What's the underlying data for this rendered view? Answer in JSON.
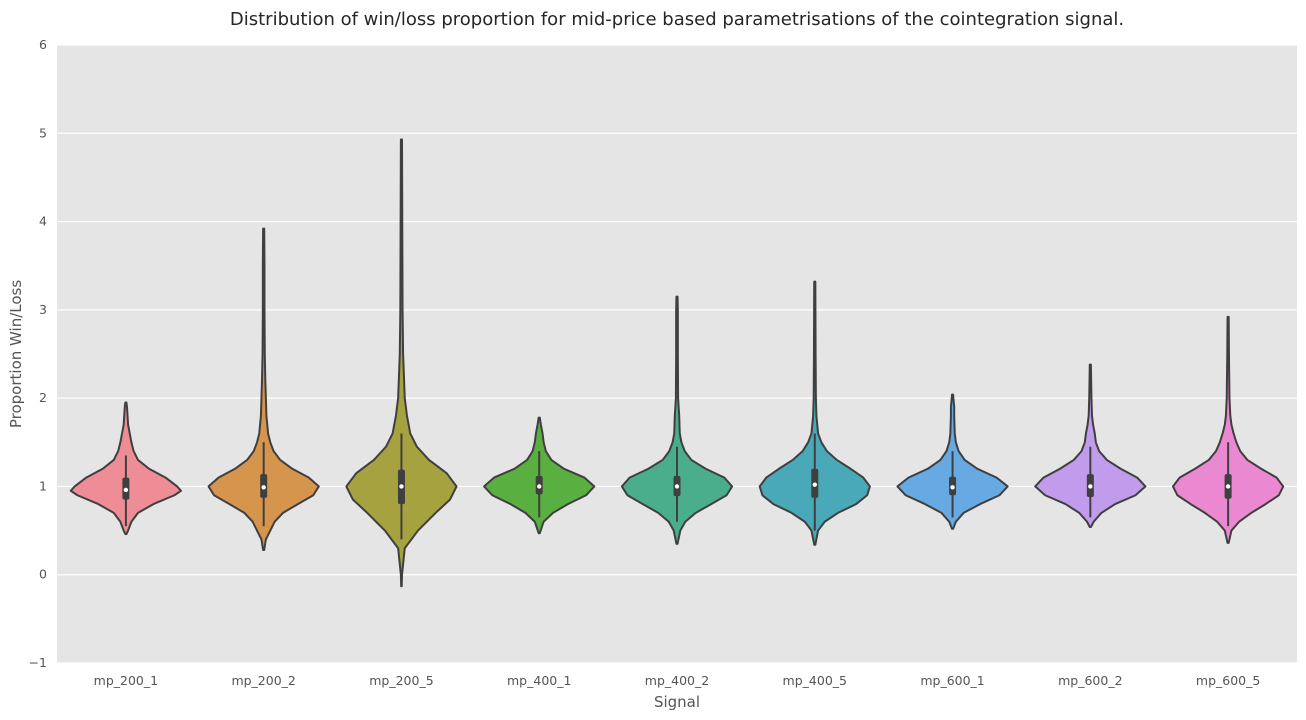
{
  "chart_data": {
    "type": "violin",
    "title": "Distribution of win/loss proportion for mid-price based parametrisations of the cointegration signal.",
    "xlabel": "Signal",
    "ylabel": "Proportion Win/Loss",
    "ylim": [
      -1,
      6
    ],
    "yticks": [
      -1,
      0,
      1,
      2,
      3,
      4,
      5,
      6
    ],
    "grid": true,
    "background_color": "#e5e5e5",
    "grid_color": "#ffffff",
    "outline_color": "#3f3f3f",
    "categories": [
      {
        "label": "mp_200_1",
        "color": "#ef8d96",
        "min": 0.46,
        "max": 1.95,
        "q1": 0.85,
        "median": 0.96,
        "q3": 1.1,
        "whisker_low": 0.55,
        "whisker_high": 1.35,
        "density": [
          [
            0.46,
            0.01
          ],
          [
            0.5,
            0.04
          ],
          [
            0.6,
            0.1
          ],
          [
            0.7,
            0.22
          ],
          [
            0.8,
            0.5
          ],
          [
            0.9,
            0.88
          ],
          [
            0.95,
            1.0
          ],
          [
            1.0,
            0.93
          ],
          [
            1.1,
            0.72
          ],
          [
            1.2,
            0.42
          ],
          [
            1.3,
            0.22
          ],
          [
            1.4,
            0.14
          ],
          [
            1.5,
            0.1
          ],
          [
            1.6,
            0.07
          ],
          [
            1.7,
            0.04
          ],
          [
            1.8,
            0.03
          ],
          [
            1.9,
            0.02
          ],
          [
            1.95,
            0.01
          ]
        ]
      },
      {
        "label": "mp_200_2",
        "color": "#d6954c",
        "min": 0.28,
        "max": 3.92,
        "q1": 0.87,
        "median": 0.99,
        "q3": 1.14,
        "whisker_low": 0.55,
        "whisker_high": 1.5,
        "density": [
          [
            0.28,
            0.01
          ],
          [
            0.4,
            0.04
          ],
          [
            0.6,
            0.2
          ],
          [
            0.7,
            0.35
          ],
          [
            0.8,
            0.62
          ],
          [
            0.9,
            0.9
          ],
          [
            1.0,
            1.0
          ],
          [
            1.1,
            0.82
          ],
          [
            1.2,
            0.52
          ],
          [
            1.3,
            0.3
          ],
          [
            1.4,
            0.18
          ],
          [
            1.5,
            0.12
          ],
          [
            1.6,
            0.08
          ],
          [
            1.8,
            0.05
          ],
          [
            2.0,
            0.04
          ],
          [
            2.2,
            0.03
          ],
          [
            2.5,
            0.02
          ],
          [
            3.0,
            0.015
          ],
          [
            3.5,
            0.015
          ],
          [
            3.92,
            0.01
          ]
        ]
      },
      {
        "label": "mp_200_5",
        "color": "#a6a240",
        "min": -0.13,
        "max": 4.93,
        "q1": 0.8,
        "median": 1.0,
        "q3": 1.19,
        "whisker_low": 0.4,
        "whisker_high": 1.6,
        "density": [
          [
            -0.13,
            0.005
          ],
          [
            0.0,
            0.01
          ],
          [
            0.3,
            0.06
          ],
          [
            0.5,
            0.3
          ],
          [
            0.7,
            0.62
          ],
          [
            0.85,
            0.88
          ],
          [
            1.0,
            1.0
          ],
          [
            1.15,
            0.82
          ],
          [
            1.3,
            0.5
          ],
          [
            1.45,
            0.28
          ],
          [
            1.6,
            0.16
          ],
          [
            1.8,
            0.1
          ],
          [
            2.0,
            0.06
          ],
          [
            2.5,
            0.03
          ],
          [
            3.0,
            0.02
          ],
          [
            4.0,
            0.015
          ],
          [
            4.93,
            0.01
          ]
        ]
      },
      {
        "label": "mp_400_1",
        "color": "#5aaf41",
        "min": 0.47,
        "max": 1.78,
        "q1": 0.91,
        "median": 1.0,
        "q3": 1.12,
        "whisker_low": 0.65,
        "whisker_high": 1.4,
        "density": [
          [
            0.47,
            0.01
          ],
          [
            0.6,
            0.08
          ],
          [
            0.7,
            0.25
          ],
          [
            0.8,
            0.52
          ],
          [
            0.9,
            0.85
          ],
          [
            1.0,
            1.0
          ],
          [
            1.1,
            0.82
          ],
          [
            1.2,
            0.45
          ],
          [
            1.3,
            0.22
          ],
          [
            1.4,
            0.12
          ],
          [
            1.5,
            0.08
          ],
          [
            1.6,
            0.06
          ],
          [
            1.7,
            0.03
          ],
          [
            1.78,
            0.01
          ]
        ]
      },
      {
        "label": "mp_400_2",
        "color": "#4aae8c",
        "min": 0.35,
        "max": 3.15,
        "q1": 0.89,
        "median": 1.0,
        "q3": 1.12,
        "whisker_low": 0.6,
        "whisker_high": 1.45,
        "density": [
          [
            0.35,
            0.01
          ],
          [
            0.5,
            0.06
          ],
          [
            0.6,
            0.15
          ],
          [
            0.7,
            0.34
          ],
          [
            0.8,
            0.62
          ],
          [
            0.9,
            0.9
          ],
          [
            1.0,
            1.0
          ],
          [
            1.1,
            0.86
          ],
          [
            1.2,
            0.52
          ],
          [
            1.3,
            0.26
          ],
          [
            1.4,
            0.14
          ],
          [
            1.5,
            0.08
          ],
          [
            1.6,
            0.05
          ],
          [
            1.8,
            0.04
          ],
          [
            2.0,
            0.02
          ],
          [
            2.5,
            0.015
          ],
          [
            3.0,
            0.015
          ],
          [
            3.15,
            0.01
          ]
        ]
      },
      {
        "label": "mp_400_5",
        "color": "#4aa9b8",
        "min": 0.34,
        "max": 3.32,
        "q1": 0.87,
        "median": 1.02,
        "q3": 1.2,
        "whisker_low": 0.5,
        "whisker_high": 1.6,
        "density": [
          [
            0.34,
            0.01
          ],
          [
            0.5,
            0.06
          ],
          [
            0.6,
            0.18
          ],
          [
            0.7,
            0.42
          ],
          [
            0.8,
            0.75
          ],
          [
            0.9,
            0.95
          ],
          [
            1.0,
            1.0
          ],
          [
            1.1,
            0.88
          ],
          [
            1.2,
            0.65
          ],
          [
            1.3,
            0.4
          ],
          [
            1.4,
            0.22
          ],
          [
            1.5,
            0.12
          ],
          [
            1.6,
            0.06
          ],
          [
            1.8,
            0.03
          ],
          [
            2.0,
            0.02
          ],
          [
            2.5,
            0.015
          ],
          [
            3.0,
            0.012
          ],
          [
            3.32,
            0.01
          ]
        ]
      },
      {
        "label": "mp_600_1",
        "color": "#67a9e2",
        "min": 0.52,
        "max": 2.04,
        "q1": 0.9,
        "median": 0.99,
        "q3": 1.11,
        "whisker_low": 0.65,
        "whisker_high": 1.4,
        "density": [
          [
            0.52,
            0.01
          ],
          [
            0.6,
            0.06
          ],
          [
            0.7,
            0.2
          ],
          [
            0.8,
            0.5
          ],
          [
            0.9,
            0.85
          ],
          [
            1.0,
            1.0
          ],
          [
            1.1,
            0.8
          ],
          [
            1.2,
            0.45
          ],
          [
            1.3,
            0.22
          ],
          [
            1.4,
            0.11
          ],
          [
            1.5,
            0.06
          ],
          [
            1.6,
            0.04
          ],
          [
            1.7,
            0.035
          ],
          [
            1.8,
            0.03
          ],
          [
            1.9,
            0.03
          ],
          [
            2.0,
            0.015
          ],
          [
            2.04,
            0.01
          ]
        ]
      },
      {
        "label": "mp_600_2",
        "color": "#c19cec",
        "min": 0.54,
        "max": 2.38,
        "q1": 0.88,
        "median": 1.0,
        "q3": 1.14,
        "whisker_low": 0.65,
        "whisker_high": 1.45,
        "density": [
          [
            0.54,
            0.01
          ],
          [
            0.6,
            0.06
          ],
          [
            0.7,
            0.2
          ],
          [
            0.8,
            0.45
          ],
          [
            0.9,
            0.82
          ],
          [
            1.0,
            1.0
          ],
          [
            1.1,
            0.85
          ],
          [
            1.2,
            0.55
          ],
          [
            1.3,
            0.3
          ],
          [
            1.4,
            0.16
          ],
          [
            1.5,
            0.1
          ],
          [
            1.6,
            0.08
          ],
          [
            1.7,
            0.05
          ],
          [
            1.8,
            0.03
          ],
          [
            2.0,
            0.02
          ],
          [
            2.2,
            0.015
          ],
          [
            2.38,
            0.01
          ]
        ]
      },
      {
        "label": "mp_600_5",
        "color": "#ea88d2",
        "min": 0.36,
        "max": 2.92,
        "q1": 0.86,
        "median": 1.0,
        "q3": 1.14,
        "whisker_low": 0.55,
        "whisker_high": 1.5,
        "density": [
          [
            0.36,
            0.01
          ],
          [
            0.5,
            0.06
          ],
          [
            0.6,
            0.2
          ],
          [
            0.7,
            0.42
          ],
          [
            0.8,
            0.68
          ],
          [
            0.9,
            0.92
          ],
          [
            1.0,
            1.0
          ],
          [
            1.1,
            0.88
          ],
          [
            1.2,
            0.6
          ],
          [
            1.3,
            0.35
          ],
          [
            1.4,
            0.22
          ],
          [
            1.5,
            0.15
          ],
          [
            1.6,
            0.1
          ],
          [
            1.7,
            0.06
          ],
          [
            1.8,
            0.04
          ],
          [
            2.0,
            0.025
          ],
          [
            2.5,
            0.015
          ],
          [
            2.92,
            0.01
          ]
        ]
      }
    ]
  }
}
